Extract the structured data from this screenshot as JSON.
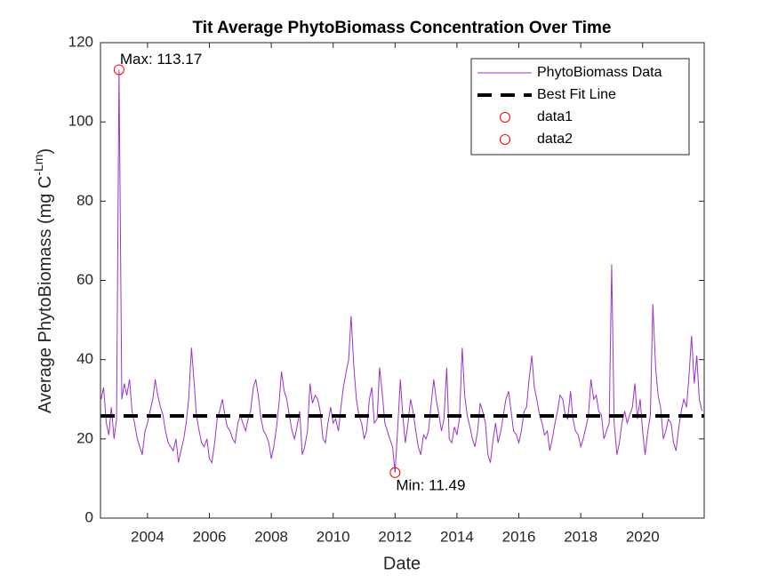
{
  "chart_data": {
    "type": "line",
    "title": "Tit Average PhytoBiomass Concentration Over Time",
    "xlabel": "Date",
    "ylabel": {
      "text": "Average PhytoBiomass (mg C",
      "superscript": "-Lm",
      "suffix": ")"
    },
    "xlim": [
      2002.48,
      2021.99
    ],
    "xticks": [
      2004,
      2006,
      2008,
      2010,
      2012,
      2014,
      2016,
      2018,
      2020
    ],
    "ylim": [
      0,
      120
    ],
    "yticks": [
      0,
      20,
      40,
      60,
      80,
      100,
      120
    ],
    "legend": "upper right",
    "annotations": [
      "Max: 113.17",
      "Min: 11.49"
    ],
    "series": [
      {
        "name": "PhytoBiomass Data",
        "color": "#9933cc",
        "style": "line",
        "x": [
          2002.5,
          2002.58,
          2002.67,
          2002.75,
          2002.83,
          2002.92,
          2003.0,
          2003.08,
          2003.17,
          2003.25,
          2003.33,
          2003.42,
          2003.5,
          2003.58,
          2003.67,
          2003.75,
          2003.83,
          2003.92,
          2004.0,
          2004.08,
          2004.17,
          2004.25,
          2004.33,
          2004.42,
          2004.5,
          2004.58,
          2004.67,
          2004.75,
          2004.83,
          2004.92,
          2005.0,
          2005.08,
          2005.17,
          2005.25,
          2005.33,
          2005.42,
          2005.5,
          2005.58,
          2005.67,
          2005.75,
          2005.83,
          2005.92,
          2006.0,
          2006.08,
          2006.17,
          2006.25,
          2006.33,
          2006.42,
          2006.5,
          2006.58,
          2006.67,
          2006.75,
          2006.83,
          2006.92,
          2007.0,
          2007.08,
          2007.17,
          2007.25,
          2007.33,
          2007.42,
          2007.5,
          2007.58,
          2007.67,
          2007.75,
          2007.83,
          2007.92,
          2008.0,
          2008.08,
          2008.17,
          2008.25,
          2008.33,
          2008.42,
          2008.5,
          2008.58,
          2008.67,
          2008.75,
          2008.83,
          2008.92,
          2009.0,
          2009.08,
          2009.17,
          2009.25,
          2009.33,
          2009.42,
          2009.5,
          2009.58,
          2009.67,
          2009.75,
          2009.83,
          2009.92,
          2010.0,
          2010.08,
          2010.17,
          2010.25,
          2010.33,
          2010.42,
          2010.5,
          2010.58,
          2010.67,
          2010.75,
          2010.83,
          2010.92,
          2011.0,
          2011.08,
          2011.17,
          2011.25,
          2011.33,
          2011.42,
          2011.5,
          2011.58,
          2011.67,
          2011.75,
          2011.83,
          2011.92,
          2012.0,
          2012.08,
          2012.17,
          2012.25,
          2012.33,
          2012.42,
          2012.5,
          2012.58,
          2012.67,
          2012.75,
          2012.83,
          2012.92,
          2013.0,
          2013.08,
          2013.17,
          2013.25,
          2013.33,
          2013.42,
          2013.5,
          2013.58,
          2013.67,
          2013.75,
          2013.83,
          2013.92,
          2014.0,
          2014.08,
          2014.17,
          2014.25,
          2014.33,
          2014.42,
          2014.5,
          2014.58,
          2014.67,
          2014.75,
          2014.83,
          2014.92,
          2015.0,
          2015.08,
          2015.17,
          2015.25,
          2015.33,
          2015.42,
          2015.5,
          2015.58,
          2015.67,
          2015.75,
          2015.83,
          2015.92,
          2016.0,
          2016.08,
          2016.17,
          2016.25,
          2016.33,
          2016.42,
          2016.5,
          2016.58,
          2016.67,
          2016.75,
          2016.83,
          2016.92,
          2017.0,
          2017.08,
          2017.17,
          2017.25,
          2017.33,
          2017.42,
          2017.5,
          2017.58,
          2017.67,
          2017.75,
          2017.83,
          2017.92,
          2018.0,
          2018.08,
          2018.17,
          2018.25,
          2018.33,
          2018.42,
          2018.5,
          2018.58,
          2018.67,
          2018.75,
          2018.83,
          2018.92,
          2019.0,
          2019.08,
          2019.17,
          2019.25,
          2019.33,
          2019.42,
          2019.5,
          2019.58,
          2019.67,
          2019.75,
          2019.83,
          2019.92,
          2020.0,
          2020.08,
          2020.17,
          2020.25,
          2020.33,
          2020.42,
          2020.5,
          2020.58,
          2020.67,
          2020.75,
          2020.83,
          2020.92,
          2021.0,
          2021.08,
          2021.17,
          2021.25,
          2021.33,
          2021.42,
          2021.5,
          2021.58,
          2021.67,
          2021.75,
          2021.83,
          2021.92
        ],
        "values": [
          30,
          33,
          24,
          21,
          28,
          20,
          25,
          113.17,
          30,
          34,
          31,
          35,
          27,
          24,
          20,
          18,
          16,
          22,
          24,
          27,
          30,
          35,
          31,
          28,
          26,
          22,
          19,
          18,
          17,
          20,
          14,
          17,
          20,
          24,
          30,
          43,
          35,
          26,
          22,
          19,
          18,
          20,
          15,
          14,
          19,
          25,
          27,
          30,
          26,
          23,
          22,
          20,
          19,
          24,
          26,
          24,
          22,
          25,
          27,
          33,
          35,
          31,
          25,
          22,
          21,
          19,
          15,
          18,
          23,
          29,
          37,
          32,
          30,
          26,
          22,
          20,
          23,
          27,
          16,
          18,
          22,
          34,
          29,
          31,
          30,
          27,
          20,
          19,
          24,
          28,
          24,
          25,
          22,
          28,
          33,
          37,
          40,
          51,
          38,
          30,
          26,
          24,
          20,
          22,
          30,
          33,
          24,
          25,
          38,
          32,
          24,
          22,
          20,
          18,
          11.49,
          22,
          35,
          26,
          19,
          24,
          30,
          27,
          22,
          18,
          16,
          21,
          20,
          22,
          29,
          35,
          30,
          26,
          22,
          25,
          38,
          20,
          19,
          23,
          21,
          25,
          43,
          31,
          26,
          23,
          20,
          18,
          22,
          29,
          27,
          24,
          16,
          14,
          20,
          24,
          19,
          22,
          26,
          30,
          32,
          27,
          22,
          21,
          19,
          22,
          27,
          28,
          35,
          41,
          33,
          30,
          26,
          24,
          21,
          22,
          17,
          20,
          24,
          27,
          31,
          30,
          26,
          25,
          32,
          25,
          22,
          21,
          18,
          20,
          23,
          26,
          35,
          30,
          31,
          27,
          26,
          20,
          22,
          24,
          64,
          24,
          16,
          19,
          24,
          27,
          24,
          26,
          28,
          34,
          25,
          30,
          22,
          16,
          22,
          26,
          54,
          38,
          31,
          28,
          20,
          22,
          25,
          24,
          19,
          17,
          23,
          27,
          30,
          28,
          36,
          46,
          34,
          41,
          30,
          27
        ]
      },
      {
        "name": "Best Fit Line",
        "color": "#000000",
        "style": "dashed",
        "x": [
          2002.48,
          2021.99
        ],
        "values": [
          25.8,
          25.8
        ]
      },
      {
        "name": "data1",
        "color": "#ff0000",
        "style": "marker",
        "x": [
          2003.08
        ],
        "values": [
          113.17
        ]
      },
      {
        "name": "data2",
        "color": "#ff0000",
        "style": "marker",
        "x": [
          2012.0
        ],
        "values": [
          11.49
        ]
      }
    ]
  }
}
